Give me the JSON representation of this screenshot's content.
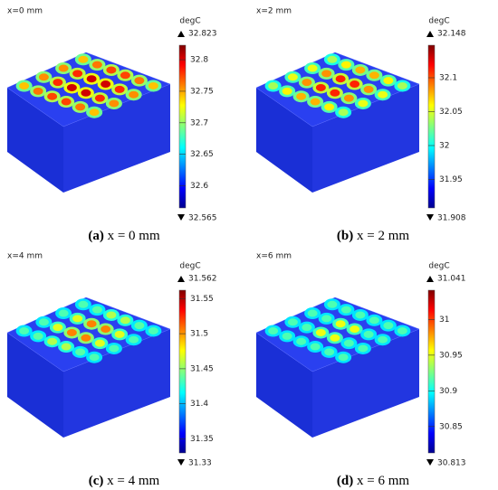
{
  "panels": [
    {
      "header": "x=0 mm",
      "unit": "degC",
      "max": 32.823,
      "min": 32.565,
      "ticks": [
        32.6,
        32.65,
        32.7,
        32.75,
        32.8
      ],
      "label": "(a)",
      "caption": "x = 0 mm"
    },
    {
      "header": "x=2 mm",
      "unit": "degC",
      "max": 32.148,
      "min": 31.908,
      "ticks": [
        31.95,
        32,
        32.05,
        32.1
      ],
      "label": "(b)",
      "caption": "x = 2 mm"
    },
    {
      "header": "x=4 mm",
      "unit": "degC",
      "max": 31.562,
      "min": 31.33,
      "ticks": [
        31.35,
        31.4,
        31.45,
        31.5,
        31.55
      ],
      "label": "(c)",
      "caption": "x = 4 mm"
    },
    {
      "header": "x=6 mm",
      "unit": "degC",
      "max": 31.041,
      "min": 30.813,
      "ticks": [
        30.85,
        30.9,
        30.95,
        31
      ],
      "label": "(d)",
      "caption": "x = 6 mm"
    }
  ]
}
